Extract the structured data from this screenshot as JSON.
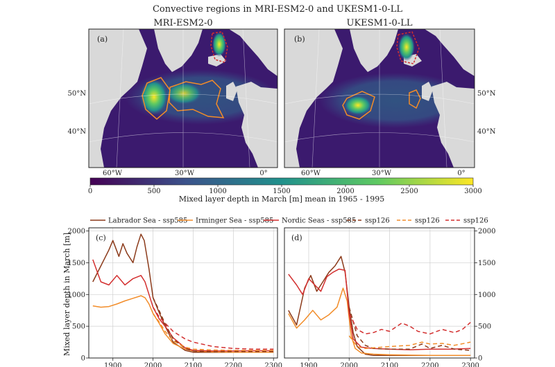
{
  "figure_title": "Convective regions in MRI-ESM2-0 and UKESM1-0-LL",
  "maps": [
    {
      "panel": "(a)",
      "title": "MRI-ESM2-0",
      "lat_labels": [
        "50°N",
        "40°N"
      ],
      "lon_labels": [
        "60°W",
        "30°W",
        "0°"
      ]
    },
    {
      "panel": "(b)",
      "title": "UKESM1-0-LL",
      "lat_labels": [
        "50°N",
        "40°N"
      ],
      "lon_labels": [
        "60°W",
        "30°W",
        "0°"
      ]
    }
  ],
  "colorbar": {
    "min": 0,
    "max": 3000,
    "ticks": [
      "0",
      "500",
      "1000",
      "1500",
      "2000",
      "2500",
      "3000"
    ],
    "label": "Mixed layer depth in March [m] mean in 1965 - 1995",
    "colormap": [
      "#440154",
      "#3b528b",
      "#21918c",
      "#5ec962",
      "#fde725"
    ]
  },
  "legend": [
    {
      "label": "Labrador Sea - ssp585",
      "color": "#8b3a1a",
      "dash": "solid"
    },
    {
      "label": "Irminger Sea - ssp585",
      "color": "#f28c28",
      "dash": "solid"
    },
    {
      "label": "Nordic Seas - ssp585",
      "color": "#d32f2f",
      "dash": "solid"
    },
    {
      "label": "ssp126",
      "color": "#8b3a1a",
      "dash": "dashed"
    },
    {
      "label": "ssp126",
      "color": "#f28c28",
      "dash": "dashed"
    },
    {
      "label": "ssp126",
      "color": "#d32f2f",
      "dash": "dashed"
    }
  ],
  "chart_data": [
    {
      "type": "line",
      "panel": "(c)",
      "ylabel": "Mixed layer depth in March [m]",
      "xlim": [
        1840,
        2310
      ],
      "ylim": [
        0,
        2050
      ],
      "xticks": [
        "1900",
        "2000",
        "2100",
        "2200",
        "2300"
      ],
      "yticks": [
        "0",
        "500",
        "1000",
        "1500",
        "2000"
      ],
      "grid": true,
      "series": [
        {
          "color": "#8b3a1a",
          "dash": "solid",
          "x": [
            1850,
            1870,
            1890,
            1900,
            1915,
            1925,
            1935,
            1950,
            1960,
            1970,
            1978,
            1990,
            2000,
            2015,
            2030,
            2050,
            2080,
            2100,
            2150,
            2200,
            2250,
            2300
          ],
          "y": [
            1200,
            1450,
            1700,
            1850,
            1600,
            1800,
            1650,
            1500,
            1750,
            1950,
            1850,
            1400,
            950,
            720,
            500,
            250,
            120,
            90,
            90,
            90,
            90,
            90
          ]
        },
        {
          "color": "#f28c28",
          "dash": "solid",
          "x": [
            1850,
            1870,
            1890,
            1910,
            1930,
            1950,
            1970,
            1980,
            1990,
            2000,
            2015,
            2030,
            2050,
            2080,
            2100,
            2150,
            2200,
            2250,
            2300
          ],
          "y": [
            820,
            800,
            810,
            850,
            900,
            940,
            980,
            950,
            850,
            700,
            550,
            380,
            230,
            140,
            110,
            95,
            90,
            90,
            90
          ]
        },
        {
          "color": "#d32f2f",
          "dash": "solid",
          "x": [
            1850,
            1870,
            1890,
            1910,
            1930,
            1950,
            1970,
            1980,
            1990,
            2000,
            2015,
            2030,
            2050,
            2080,
            2100,
            2150,
            2200,
            2250,
            2300
          ],
          "y": [
            1550,
            1200,
            1150,
            1300,
            1150,
            1250,
            1300,
            1200,
            1000,
            800,
            620,
            500,
            320,
            160,
            120,
            110,
            110,
            115,
            115
          ]
        },
        {
          "color": "#8b3a1a",
          "dash": "dashed",
          "x": [
            2000,
            2015,
            2030,
            2050,
            2080,
            2100,
            2150,
            2200,
            2250,
            2300
          ],
          "y": [
            950,
            750,
            540,
            300,
            150,
            110,
            100,
            100,
            100,
            100
          ]
        },
        {
          "color": "#f28c28",
          "dash": "dashed",
          "x": [
            2000,
            2015,
            2030,
            2050,
            2080,
            2100,
            2150,
            2200,
            2250,
            2300
          ],
          "y": [
            700,
            570,
            420,
            270,
            170,
            140,
            125,
            120,
            120,
            120
          ]
        },
        {
          "color": "#d32f2f",
          "dash": "dashed",
          "x": [
            2000,
            2015,
            2030,
            2050,
            2080,
            2100,
            2150,
            2200,
            2250,
            2300
          ],
          "y": [
            800,
            650,
            550,
            420,
            300,
            250,
            180,
            150,
            140,
            140
          ]
        }
      ]
    },
    {
      "type": "line",
      "panel": "(d)",
      "xlim": [
        1840,
        2310
      ],
      "ylim": [
        0,
        2050
      ],
      "xticks": [
        "1900",
        "2000",
        "2100",
        "2200",
        "2300"
      ],
      "yticks": [
        "0",
        "500",
        "1000",
        "1500",
        "2000"
      ],
      "grid": true,
      "series": [
        {
          "color": "#8b3a1a",
          "dash": "solid",
          "x": [
            1850,
            1870,
            1890,
            1905,
            1920,
            1935,
            1950,
            1965,
            1980,
            1990,
            2000,
            2010,
            2020,
            2040,
            2060,
            2100,
            2150,
            2200,
            2250,
            2300
          ],
          "y": [
            750,
            520,
            1100,
            1300,
            1050,
            1200,
            1350,
            1450,
            1600,
            1350,
            800,
            400,
            180,
            60,
            40,
            40,
            40,
            40,
            40,
            40
          ]
        },
        {
          "color": "#f28c28",
          "dash": "solid",
          "x": [
            1850,
            1870,
            1890,
            1910,
            1930,
            1950,
            1970,
            1985,
            1995,
            2005,
            2015,
            2030,
            2060,
            2100,
            2150,
            2200,
            2250,
            2300
          ],
          "y": [
            700,
            470,
            600,
            750,
            600,
            680,
            800,
            1100,
            900,
            350,
            150,
            80,
            60,
            50,
            45,
            40,
            40,
            40
          ]
        },
        {
          "color": "#d32f2f",
          "dash": "solid",
          "x": [
            1850,
            1870,
            1885,
            1900,
            1915,
            1930,
            1945,
            1960,
            1975,
            1990,
            2000,
            2010,
            2030,
            2060,
            2100,
            2150,
            2200,
            2250,
            2300
          ],
          "y": [
            1320,
            1150,
            1000,
            1250,
            1150,
            1050,
            1280,
            1350,
            1400,
            1380,
            700,
            300,
            170,
            150,
            140,
            130,
            140,
            140,
            150
          ]
        },
        {
          "color": "#8b3a1a",
          "dash": "dashed",
          "x": [
            2000,
            2020,
            2040,
            2060,
            2100,
            2150,
            2180,
            2200,
            2230,
            2260,
            2300
          ],
          "y": [
            800,
            350,
            200,
            150,
            140,
            140,
            220,
            150,
            200,
            140,
            120
          ]
        },
        {
          "color": "#f28c28",
          "dash": "dashed",
          "x": [
            2000,
            2020,
            2040,
            2060,
            2100,
            2150,
            2180,
            2200,
            2230,
            2260,
            2300
          ],
          "y": [
            350,
            180,
            150,
            160,
            180,
            200,
            250,
            220,
            230,
            200,
            250
          ]
        },
        {
          "color": "#d32f2f",
          "dash": "dashed",
          "x": [
            2000,
            2020,
            2040,
            2060,
            2080,
            2100,
            2130,
            2150,
            2170,
            2200,
            2230,
            2260,
            2280,
            2300
          ],
          "y": [
            700,
            450,
            380,
            400,
            450,
            420,
            550,
            500,
            420,
            380,
            450,
            400,
            450,
            560
          ]
        }
      ]
    }
  ]
}
